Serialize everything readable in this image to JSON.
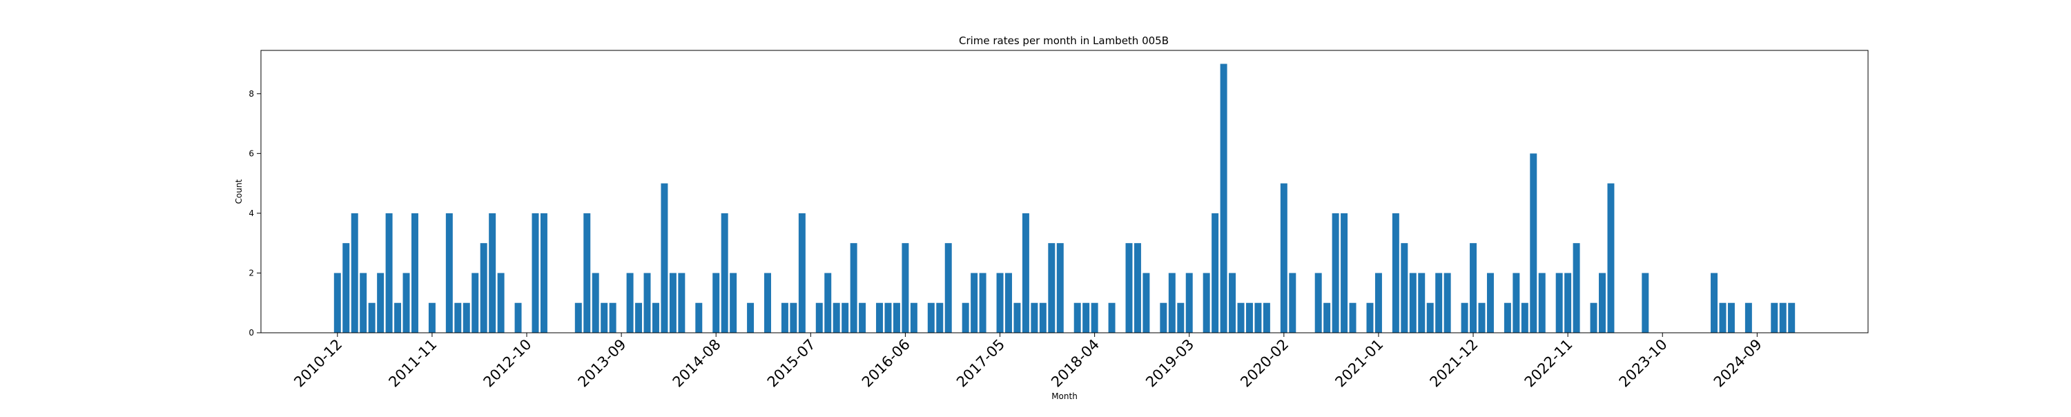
{
  "chart_data": {
    "type": "bar",
    "title": "Crime rates per month in Lambeth 005B",
    "xlabel": "Month",
    "ylabel": "Count",
    "ylim": [
      0,
      9.45
    ],
    "yticks": [
      0,
      2,
      4,
      6,
      8
    ],
    "grid": false,
    "bar_color": "#1f77b4",
    "first_month": "2010-12",
    "last_month": "2025-01",
    "x_ticks": [
      "2010-12",
      "2011-11",
      "2012-10",
      "2013-09",
      "2014-08",
      "2015-07",
      "2016-06",
      "2017-05",
      "2018-04",
      "2019-03",
      "2020-02",
      "2021-01",
      "2021-12",
      "2022-11",
      "2023-10",
      "2024-09"
    ],
    "points": [
      {
        "x": "2010-12",
        "y": 2
      },
      {
        "x": "2011-01",
        "y": 3
      },
      {
        "x": "2011-02",
        "y": 4
      },
      {
        "x": "2011-03",
        "y": 2
      },
      {
        "x": "2011-04",
        "y": 1
      },
      {
        "x": "2011-05",
        "y": 2
      },
      {
        "x": "2011-06",
        "y": 4
      },
      {
        "x": "2011-07",
        "y": 1
      },
      {
        "x": "2011-08",
        "y": 2
      },
      {
        "x": "2011-09",
        "y": 4
      },
      {
        "x": "2011-11",
        "y": 1
      },
      {
        "x": "2012-01",
        "y": 4
      },
      {
        "x": "2012-02",
        "y": 1
      },
      {
        "x": "2012-03",
        "y": 1
      },
      {
        "x": "2012-04",
        "y": 2
      },
      {
        "x": "2012-05",
        "y": 3
      },
      {
        "x": "2012-06",
        "y": 4
      },
      {
        "x": "2012-07",
        "y": 2
      },
      {
        "x": "2012-09",
        "y": 1
      },
      {
        "x": "2012-11",
        "y": 4
      },
      {
        "x": "2012-12",
        "y": 4
      },
      {
        "x": "2013-04",
        "y": 1
      },
      {
        "x": "2013-05",
        "y": 4
      },
      {
        "x": "2013-06",
        "y": 2
      },
      {
        "x": "2013-07",
        "y": 1
      },
      {
        "x": "2013-08",
        "y": 1
      },
      {
        "x": "2013-10",
        "y": 2
      },
      {
        "x": "2013-11",
        "y": 1
      },
      {
        "x": "2013-12",
        "y": 2
      },
      {
        "x": "2014-01",
        "y": 1
      },
      {
        "x": "2014-02",
        "y": 5
      },
      {
        "x": "2014-03",
        "y": 2
      },
      {
        "x": "2014-04",
        "y": 2
      },
      {
        "x": "2014-06",
        "y": 1
      },
      {
        "x": "2014-08",
        "y": 2
      },
      {
        "x": "2014-09",
        "y": 4
      },
      {
        "x": "2014-10",
        "y": 2
      },
      {
        "x": "2014-12",
        "y": 1
      },
      {
        "x": "2015-02",
        "y": 2
      },
      {
        "x": "2015-04",
        "y": 1
      },
      {
        "x": "2015-05",
        "y": 1
      },
      {
        "x": "2015-06",
        "y": 4
      },
      {
        "x": "2015-08",
        "y": 1
      },
      {
        "x": "2015-09",
        "y": 2
      },
      {
        "x": "2015-10",
        "y": 1
      },
      {
        "x": "2015-11",
        "y": 1
      },
      {
        "x": "2015-12",
        "y": 3
      },
      {
        "x": "2016-01",
        "y": 1
      },
      {
        "x": "2016-03",
        "y": 1
      },
      {
        "x": "2016-04",
        "y": 1
      },
      {
        "x": "2016-05",
        "y": 1
      },
      {
        "x": "2016-06",
        "y": 3
      },
      {
        "x": "2016-07",
        "y": 1
      },
      {
        "x": "2016-09",
        "y": 1
      },
      {
        "x": "2016-10",
        "y": 1
      },
      {
        "x": "2016-11",
        "y": 3
      },
      {
        "x": "2017-01",
        "y": 1
      },
      {
        "x": "2017-02",
        "y": 2
      },
      {
        "x": "2017-03",
        "y": 2
      },
      {
        "x": "2017-05",
        "y": 2
      },
      {
        "x": "2017-06",
        "y": 2
      },
      {
        "x": "2017-07",
        "y": 1
      },
      {
        "x": "2017-08",
        "y": 4
      },
      {
        "x": "2017-09",
        "y": 1
      },
      {
        "x": "2017-10",
        "y": 1
      },
      {
        "x": "2017-11",
        "y": 3
      },
      {
        "x": "2017-12",
        "y": 3
      },
      {
        "x": "2018-02",
        "y": 1
      },
      {
        "x": "2018-03",
        "y": 1
      },
      {
        "x": "2018-04",
        "y": 1
      },
      {
        "x": "2018-06",
        "y": 1
      },
      {
        "x": "2018-08",
        "y": 3
      },
      {
        "x": "2018-09",
        "y": 3
      },
      {
        "x": "2018-10",
        "y": 2
      },
      {
        "x": "2018-12",
        "y": 1
      },
      {
        "x": "2019-01",
        "y": 2
      },
      {
        "x": "2019-02",
        "y": 1
      },
      {
        "x": "2019-03",
        "y": 2
      },
      {
        "x": "2019-05",
        "y": 2
      },
      {
        "x": "2019-06",
        "y": 4
      },
      {
        "x": "2019-07",
        "y": 9
      },
      {
        "x": "2019-08",
        "y": 2
      },
      {
        "x": "2019-09",
        "y": 1
      },
      {
        "x": "2019-10",
        "y": 1
      },
      {
        "x": "2019-11",
        "y": 1
      },
      {
        "x": "2019-12",
        "y": 1
      },
      {
        "x": "2020-02",
        "y": 5
      },
      {
        "x": "2020-03",
        "y": 2
      },
      {
        "x": "2020-06",
        "y": 2
      },
      {
        "x": "2020-07",
        "y": 1
      },
      {
        "x": "2020-08",
        "y": 4
      },
      {
        "x": "2020-09",
        "y": 4
      },
      {
        "x": "2020-10",
        "y": 1
      },
      {
        "x": "2020-12",
        "y": 1
      },
      {
        "x": "2021-01",
        "y": 2
      },
      {
        "x": "2021-03",
        "y": 4
      },
      {
        "x": "2021-04",
        "y": 3
      },
      {
        "x": "2021-05",
        "y": 2
      },
      {
        "x": "2021-06",
        "y": 2
      },
      {
        "x": "2021-07",
        "y": 1
      },
      {
        "x": "2021-08",
        "y": 2
      },
      {
        "x": "2021-09",
        "y": 2
      },
      {
        "x": "2021-11",
        "y": 1
      },
      {
        "x": "2021-12",
        "y": 3
      },
      {
        "x": "2022-01",
        "y": 1
      },
      {
        "x": "2022-02",
        "y": 2
      },
      {
        "x": "2022-04",
        "y": 1
      },
      {
        "x": "2022-05",
        "y": 2
      },
      {
        "x": "2022-06",
        "y": 1
      },
      {
        "x": "2022-07",
        "y": 6
      },
      {
        "x": "2022-08",
        "y": 2
      },
      {
        "x": "2022-10",
        "y": 2
      },
      {
        "x": "2022-11",
        "y": 2
      },
      {
        "x": "2022-12",
        "y": 3
      },
      {
        "x": "2023-02",
        "y": 1
      },
      {
        "x": "2023-03",
        "y": 2
      },
      {
        "x": "2023-04",
        "y": 5
      },
      {
        "x": "2023-08",
        "y": 2
      },
      {
        "x": "2024-04",
        "y": 2
      },
      {
        "x": "2024-05",
        "y": 1
      },
      {
        "x": "2024-06",
        "y": 1
      },
      {
        "x": "2024-08",
        "y": 1
      },
      {
        "x": "2024-11",
        "y": 1
      },
      {
        "x": "2024-12",
        "y": 1
      },
      {
        "x": "2025-01",
        "y": 1
      }
    ]
  }
}
